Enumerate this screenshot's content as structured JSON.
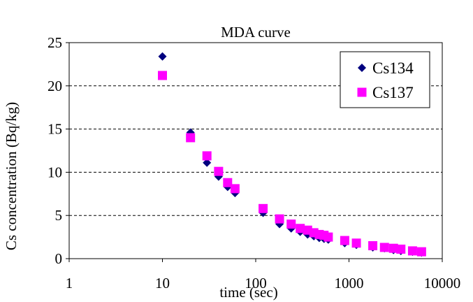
{
  "chart_data": {
    "type": "scatter",
    "title": "MDA curve",
    "xlabel": "time (sec)",
    "ylabel": "Cs concentration (Bq/kg)",
    "x_scale": "log",
    "xlim": [
      1,
      10000
    ],
    "ylim": [
      0,
      25
    ],
    "x_ticks": [
      "1",
      "10",
      "100",
      "1000",
      "10000"
    ],
    "y_ticks": [
      "0",
      "5",
      "10",
      "15",
      "20",
      "25"
    ],
    "grid": "horizontal dashed",
    "legend_position": "top-right",
    "series": [
      {
        "name": "Cs134",
        "marker": "diamond",
        "color": "#00007f",
        "points": [
          [
            10,
            23.4
          ],
          [
            20,
            14.6
          ],
          [
            30,
            11.1
          ],
          [
            40,
            9.5
          ],
          [
            50,
            8.3
          ],
          [
            60,
            7.6
          ],
          [
            120,
            5.3
          ],
          [
            180,
            4.0
          ],
          [
            240,
            3.5
          ],
          [
            300,
            3.1
          ],
          [
            360,
            2.8
          ],
          [
            420,
            2.6
          ],
          [
            480,
            2.4
          ],
          [
            540,
            2.3
          ],
          [
            600,
            2.2
          ],
          [
            900,
            1.8
          ],
          [
            1200,
            1.6
          ],
          [
            1800,
            1.3
          ],
          [
            2400,
            1.2
          ],
          [
            3000,
            1.0
          ],
          [
            3600,
            0.9
          ],
          [
            4800,
            0.8
          ],
          [
            6000,
            0.7
          ]
        ]
      },
      {
        "name": "Cs137",
        "marker": "square",
        "color": "#ff00ff",
        "points": [
          [
            10,
            21.2
          ],
          [
            20,
            14.0
          ],
          [
            30,
            11.9
          ],
          [
            40,
            10.1
          ],
          [
            50,
            8.8
          ],
          [
            60,
            8.1
          ],
          [
            120,
            5.8
          ],
          [
            180,
            4.6
          ],
          [
            240,
            4.0
          ],
          [
            300,
            3.5
          ],
          [
            360,
            3.3
          ],
          [
            420,
            3.0
          ],
          [
            480,
            2.8
          ],
          [
            540,
            2.7
          ],
          [
            600,
            2.5
          ],
          [
            900,
            2.1
          ],
          [
            1200,
            1.8
          ],
          [
            1800,
            1.5
          ],
          [
            2400,
            1.3
          ],
          [
            3000,
            1.2
          ],
          [
            3600,
            1.1
          ],
          [
            4800,
            0.9
          ],
          [
            6000,
            0.8
          ]
        ]
      }
    ]
  }
}
